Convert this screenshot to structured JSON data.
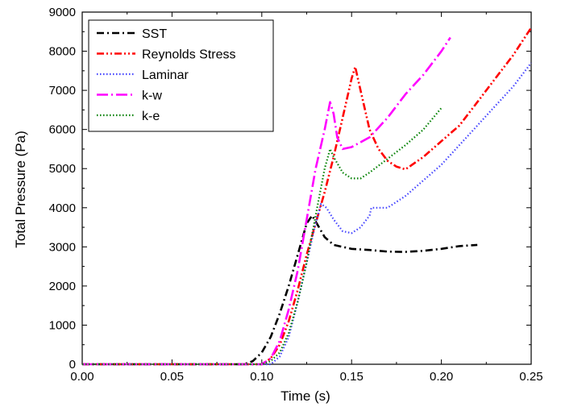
{
  "chart_data": {
    "type": "line",
    "title": "",
    "xlabel": "Time (s)",
    "ylabel": "Total Pressure (Pa)",
    "xlim": [
      0,
      0.25
    ],
    "ylim": [
      0,
      9000
    ],
    "xticks": [
      0.0,
      0.05,
      0.1,
      0.15,
      0.2,
      0.25
    ],
    "xtick_labels": [
      "0.00",
      "0.05",
      "0.10",
      "0.15",
      "0.20",
      "0.25"
    ],
    "yticks": [
      0,
      1000,
      2000,
      3000,
      4000,
      5000,
      6000,
      7000,
      8000,
      9000
    ],
    "ytick_labels": [
      "0",
      "1000",
      "2000",
      "3000",
      "4000",
      "5000",
      "6000",
      "7000",
      "8000",
      "9000"
    ],
    "grid": false,
    "legend_position": "top-left",
    "series": [
      {
        "name": "SST",
        "color": "#000000",
        "dash": "dash-dot",
        "x": [
          0.0,
          0.09,
          0.095,
          0.1,
          0.105,
          0.11,
          0.115,
          0.12,
          0.125,
          0.128,
          0.13,
          0.135,
          0.14,
          0.15,
          0.16,
          0.17,
          0.18,
          0.19,
          0.2,
          0.21,
          0.22
        ],
        "y": [
          0,
          0,
          80,
          300,
          700,
          1300,
          2000,
          2800,
          3600,
          3800,
          3650,
          3250,
          3050,
          2950,
          2920,
          2880,
          2870,
          2900,
          2950,
          3020,
          3050
        ]
      },
      {
        "name": "Reynolds Stress",
        "color": "#ff0000",
        "dash": "dash-dot-dot",
        "x": [
          0.0,
          0.1,
          0.105,
          0.11,
          0.115,
          0.12,
          0.125,
          0.13,
          0.135,
          0.14,
          0.145,
          0.15,
          0.152,
          0.155,
          0.16,
          0.165,
          0.17,
          0.175,
          0.18,
          0.19,
          0.2,
          0.21,
          0.22,
          0.23,
          0.24,
          0.25
        ],
        "y": [
          0,
          0,
          150,
          500,
          1100,
          1900,
          2800,
          3600,
          4400,
          5300,
          6300,
          7300,
          7600,
          7000,
          6000,
          5500,
          5200,
          5050,
          4980,
          5300,
          5700,
          6100,
          6700,
          7300,
          7900,
          8600
        ]
      },
      {
        "name": "Laminar",
        "color": "#4444ff",
        "dash": "dot",
        "x": [
          0.0,
          0.105,
          0.11,
          0.115,
          0.12,
          0.125,
          0.13,
          0.133,
          0.136,
          0.14,
          0.145,
          0.15,
          0.155,
          0.16,
          0.161,
          0.17,
          0.18,
          0.19,
          0.2,
          0.21,
          0.22,
          0.23,
          0.24,
          0.25
        ],
        "y": [
          0,
          0,
          200,
          700,
          1600,
          2600,
          3600,
          4100,
          4000,
          3700,
          3400,
          3350,
          3500,
          3800,
          4000,
          4000,
          4300,
          4700,
          5100,
          5600,
          6100,
          6600,
          7100,
          7700
        ]
      },
      {
        "name": "k-w",
        "color": "#ff00ff",
        "dash": "long-dash-dot",
        "x": [
          0.0,
          0.1,
          0.105,
          0.11,
          0.115,
          0.12,
          0.125,
          0.13,
          0.135,
          0.138,
          0.14,
          0.142,
          0.145,
          0.15,
          0.16,
          0.17,
          0.18,
          0.19,
          0.2,
          0.205
        ],
        "y": [
          0,
          0,
          150,
          600,
          1400,
          2400,
          3700,
          5000,
          6000,
          6700,
          6400,
          5800,
          5500,
          5550,
          5800,
          6300,
          6900,
          7400,
          8000,
          8350
        ]
      },
      {
        "name": "k-e",
        "color": "#008000",
        "dash": "dot",
        "x": [
          0.0,
          0.1,
          0.105,
          0.11,
          0.115,
          0.12,
          0.125,
          0.13,
          0.135,
          0.138,
          0.14,
          0.145,
          0.15,
          0.155,
          0.16,
          0.17,
          0.18,
          0.19,
          0.2
        ],
        "y": [
          0,
          0,
          80,
          300,
          800,
          1600,
          2600,
          3800,
          5000,
          5500,
          5300,
          4900,
          4750,
          4750,
          4900,
          5250,
          5600,
          6000,
          6550
        ]
      }
    ]
  }
}
